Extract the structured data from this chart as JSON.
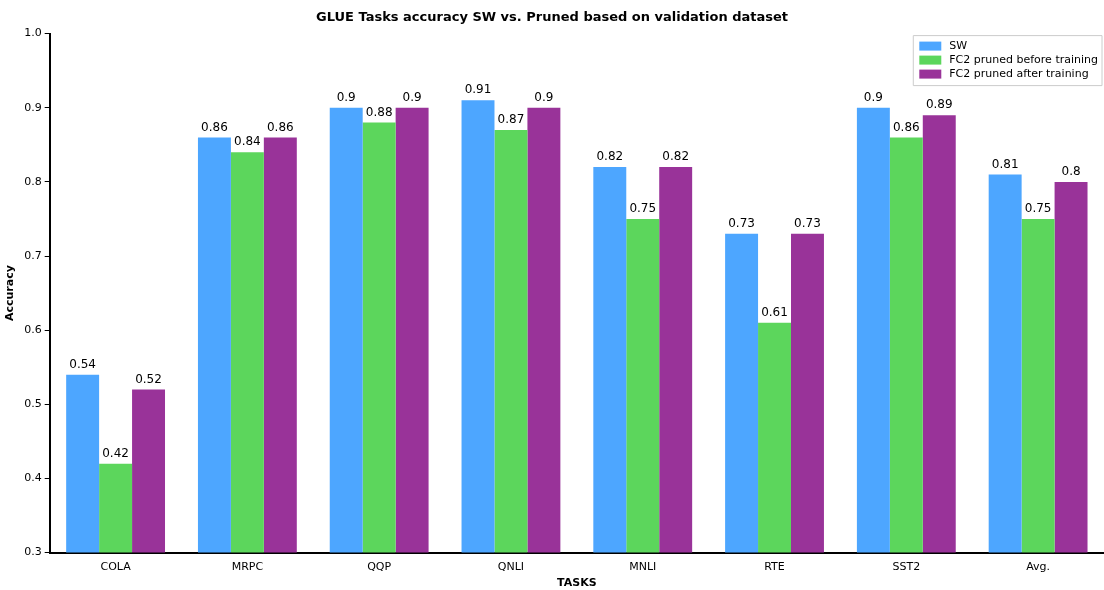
{
  "chart_data": {
    "type": "bar",
    "title": "GLUE Tasks accuracy SW vs. Pruned based on validation dataset",
    "xlabel": "TASKS",
    "ylabel": "Accuracy",
    "categories": [
      "COLA",
      "MRPC",
      "QQP",
      "QNLI",
      "MNLI",
      "RTE",
      "SST2",
      "Avg."
    ],
    "series": [
      {
        "name": "SW",
        "color": "#4da6ff",
        "values": [
          0.54,
          0.86,
          0.9,
          0.91,
          0.82,
          0.73,
          0.9,
          0.81
        ]
      },
      {
        "name": "FC2 pruned before training",
        "color": "#5cd65c",
        "values": [
          0.42,
          0.84,
          0.88,
          0.87,
          0.75,
          0.61,
          0.86,
          0.75
        ]
      },
      {
        "name": "FC2 pruned after training",
        "color": "#993399",
        "values": [
          0.52,
          0.86,
          0.9,
          0.9,
          0.82,
          0.73,
          0.89,
          0.8
        ]
      }
    ],
    "ylim": [
      0.3,
      1.0
    ],
    "yticks": [
      0.3,
      0.4,
      0.5,
      0.6,
      0.7,
      0.8,
      0.9,
      {
        "value": 1.0,
        "label": "1.0"
      }
    ],
    "data_labels": true,
    "grid": false,
    "legend": "top right"
  }
}
